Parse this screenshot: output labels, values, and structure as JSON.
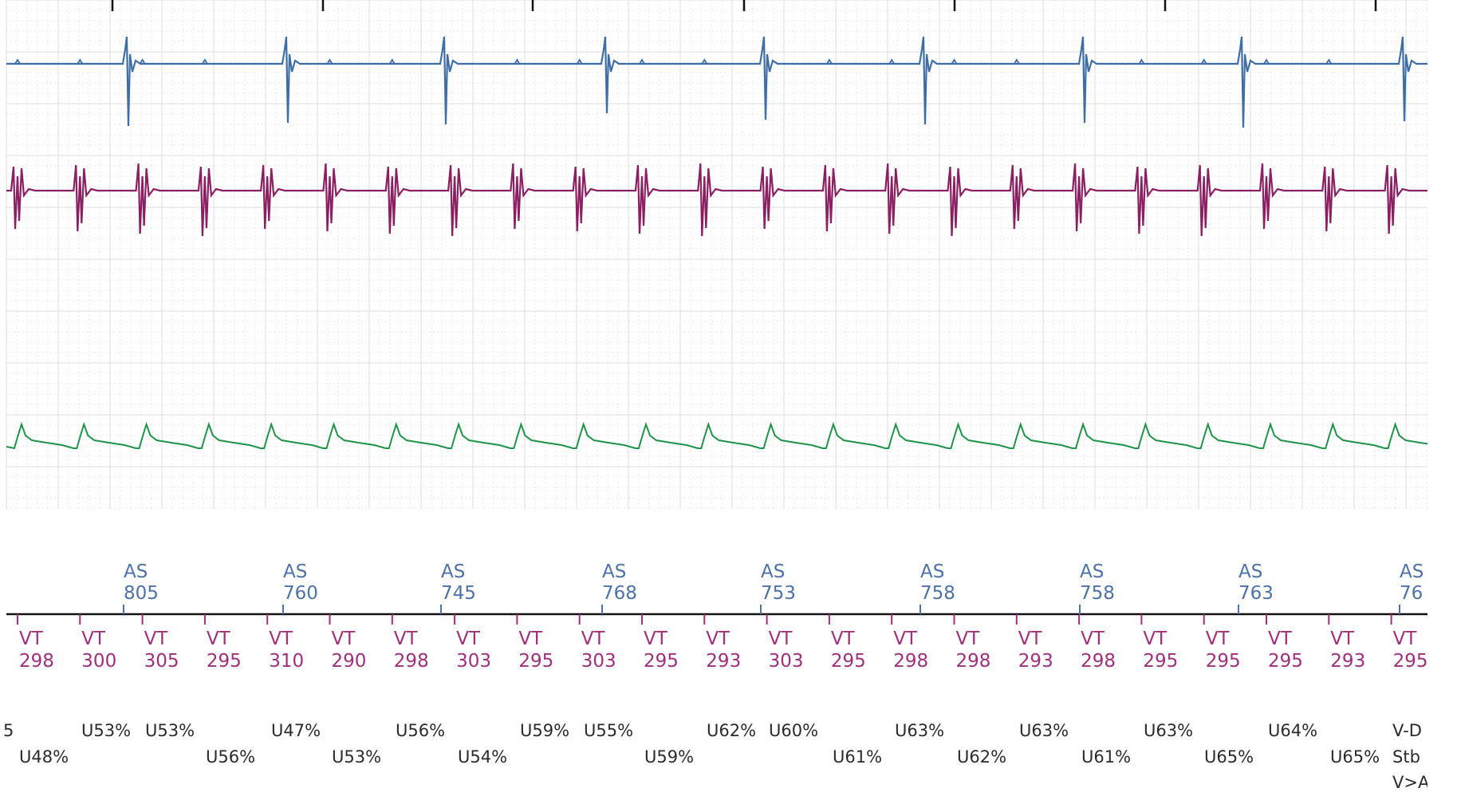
{
  "colors": {
    "atrial_trace": "#3f6ea5",
    "ventricular_trace": "#8a1f61",
    "far_field_trace": "#1f9348",
    "atrial_marker_text": "#4d72a8",
    "ventricular_marker_text": "#a0307c",
    "grid": "#e3e3e3",
    "marker_line": "#111111",
    "annotation_text": "#2b2b2b"
  },
  "atrial_markers": [
    {
      "label": "AS",
      "interval": "805"
    },
    {
      "label": "AS",
      "interval": "760"
    },
    {
      "label": "AS",
      "interval": "745"
    },
    {
      "label": "AS",
      "interval": "768"
    },
    {
      "label": "AS",
      "interval": "753"
    },
    {
      "label": "AS",
      "interval": "758"
    },
    {
      "label": "AS",
      "interval": "758"
    },
    {
      "label": "AS",
      "interval": "763"
    },
    {
      "label": "AS",
      "interval": "76"
    }
  ],
  "ventricular_markers": [
    {
      "label": "VT",
      "interval": "298"
    },
    {
      "label": "VT",
      "interval": "300"
    },
    {
      "label": "VT",
      "interval": "305"
    },
    {
      "label": "VT",
      "interval": "295"
    },
    {
      "label": "VT",
      "interval": "310"
    },
    {
      "label": "VT",
      "interval": "290"
    },
    {
      "label": "VT",
      "interval": "298"
    },
    {
      "label": "VT",
      "interval": "303"
    },
    {
      "label": "VT",
      "interval": "295"
    },
    {
      "label": "VT",
      "interval": "303"
    },
    {
      "label": "VT",
      "interval": "295"
    },
    {
      "label": "VT",
      "interval": "293"
    },
    {
      "label": "VT",
      "interval": "303"
    },
    {
      "label": "VT",
      "interval": "295"
    },
    {
      "label": "VT",
      "interval": "298"
    },
    {
      "label": "VT",
      "interval": "298"
    },
    {
      "label": "VT",
      "interval": "293"
    },
    {
      "label": "VT",
      "interval": "298"
    },
    {
      "label": "VT",
      "interval": "295"
    },
    {
      "label": "VT",
      "interval": "295"
    },
    {
      "label": "VT",
      "interval": "295"
    },
    {
      "label": "VT",
      "interval": "293"
    },
    {
      "label": "VT",
      "interval": "295"
    }
  ],
  "annotations_row1": [
    "5",
    "U53%",
    "U53%",
    "U47%",
    "U56%",
    "U59%",
    "U55%",
    "U62%",
    "U60%",
    "U63%",
    "U63%",
    "U63%",
    "U64%",
    "V-D"
  ],
  "annotations_row2": [
    "U48%",
    "U56%",
    "U53%",
    "U54%",
    "U59%",
    "U61%",
    "U62%",
    "U61%",
    "U65%",
    "U65%",
    "Stb"
  ],
  "annotations_row3": [
    "V>A"
  ]
}
